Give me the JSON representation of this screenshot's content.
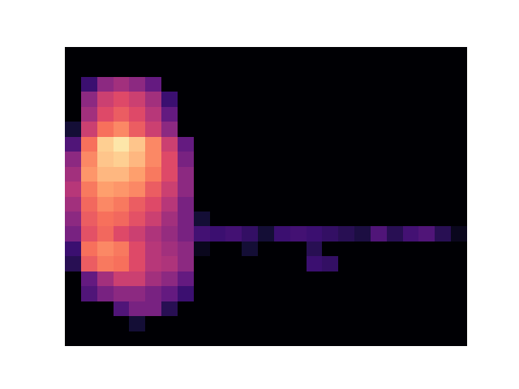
{
  "chart_data": {
    "type": "heatmap",
    "color": "magma",
    "tick_labels": false,
    "zlim": [
      0,
      100
    ],
    "cells": [
      [
        0,
        0,
        0,
        0,
        0,
        0,
        0,
        0,
        0,
        0,
        0,
        0,
        0,
        0,
        0,
        0,
        0,
        0,
        0,
        0,
        0,
        0,
        0,
        0,
        0
      ],
      [
        0,
        0,
        0,
        0,
        0,
        0,
        0,
        0,
        0,
        0,
        0,
        0,
        0,
        0,
        0,
        0,
        0,
        0,
        0,
        0,
        0,
        0,
        0,
        0,
        0
      ],
      [
        0,
        20,
        40,
        45,
        40,
        30,
        0,
        0,
        0,
        0,
        0,
        0,
        0,
        0,
        0,
        0,
        0,
        0,
        0,
        0,
        0,
        0,
        0,
        0,
        0
      ],
      [
        0,
        40,
        55,
        60,
        55,
        45,
        20,
        0,
        0,
        0,
        0,
        0,
        0,
        0,
        0,
        0,
        0,
        0,
        0,
        0,
        0,
        0,
        0,
        0,
        0
      ],
      [
        0,
        45,
        60,
        65,
        60,
        50,
        30,
        0,
        0,
        0,
        0,
        0,
        0,
        0,
        0,
        0,
        0,
        0,
        0,
        0,
        0,
        0,
        0,
        0,
        0
      ],
      [
        10,
        55,
        70,
        75,
        65,
        55,
        40,
        0,
        0,
        0,
        0,
        0,
        0,
        0,
        0,
        0,
        0,
        0,
        0,
        0,
        0,
        0,
        0,
        0,
        0
      ],
      [
        25,
        70,
        90,
        95,
        88,
        75,
        55,
        30,
        0,
        0,
        0,
        0,
        0,
        0,
        0,
        0,
        0,
        0,
        0,
        0,
        0,
        0,
        0,
        0,
        0
      ],
      [
        40,
        75,
        88,
        90,
        85,
        75,
        60,
        35,
        0,
        0,
        0,
        0,
        0,
        0,
        0,
        0,
        0,
        0,
        0,
        0,
        0,
        0,
        0,
        0,
        0
      ],
      [
        45,
        78,
        85,
        85,
        80,
        72,
        60,
        40,
        0,
        0,
        0,
        0,
        0,
        0,
        0,
        0,
        0,
        0,
        0,
        0,
        0,
        0,
        0,
        0,
        0
      ],
      [
        50,
        72,
        80,
        78,
        75,
        65,
        55,
        40,
        0,
        0,
        0,
        0,
        0,
        0,
        0,
        0,
        0,
        0,
        0,
        0,
        0,
        0,
        0,
        0,
        0
      ],
      [
        45,
        68,
        75,
        72,
        65,
        60,
        50,
        35,
        0,
        0,
        0,
        0,
        0,
        0,
        0,
        0,
        0,
        0,
        0,
        0,
        0,
        0,
        0,
        0,
        0
      ],
      [
        40,
        65,
        70,
        68,
        62,
        55,
        45,
        35,
        10,
        0,
        0,
        0,
        0,
        0,
        0,
        0,
        0,
        0,
        0,
        0,
        0,
        0,
        0,
        0,
        0
      ],
      [
        35,
        62,
        68,
        60,
        55,
        48,
        42,
        35,
        22,
        20,
        22,
        18,
        10,
        20,
        22,
        20,
        18,
        15,
        12,
        25,
        15,
        22,
        25,
        15,
        5
      ],
      [
        20,
        70,
        75,
        72,
        60,
        50,
        45,
        40,
        5,
        0,
        0,
        10,
        0,
        0,
        0,
        15,
        0,
        0,
        0,
        0,
        0,
        0,
        0,
        0,
        0
      ],
      [
        15,
        65,
        72,
        70,
        60,
        50,
        48,
        40,
        0,
        0,
        0,
        0,
        0,
        0,
        0,
        20,
        18,
        0,
        0,
        0,
        0,
        0,
        0,
        0,
        0
      ],
      [
        0,
        30,
        45,
        55,
        55,
        45,
        40,
        30,
        0,
        0,
        0,
        0,
        0,
        0,
        0,
        0,
        0,
        0,
        0,
        0,
        0,
        0,
        0,
        0,
        0
      ],
      [
        0,
        25,
        35,
        40,
        40,
        35,
        30,
        20,
        0,
        0,
        0,
        0,
        0,
        0,
        0,
        0,
        0,
        0,
        0,
        0,
        0,
        0,
        0,
        0,
        0
      ],
      [
        0,
        0,
        0,
        25,
        35,
        35,
        15,
        0,
        0,
        0,
        0,
        0,
        0,
        0,
        0,
        0,
        0,
        0,
        0,
        0,
        0,
        0,
        0,
        0,
        0
      ],
      [
        0,
        0,
        0,
        0,
        10,
        0,
        0,
        0,
        0,
        0,
        0,
        0,
        0,
        0,
        0,
        0,
        0,
        0,
        0,
        0,
        0,
        0,
        0,
        0,
        0
      ],
      [
        0,
        0,
        0,
        0,
        0,
        0,
        0,
        0,
        0,
        0,
        0,
        0,
        0,
        0,
        0,
        0,
        0,
        0,
        0,
        0,
        0,
        0,
        0,
        0,
        0
      ]
    ]
  }
}
